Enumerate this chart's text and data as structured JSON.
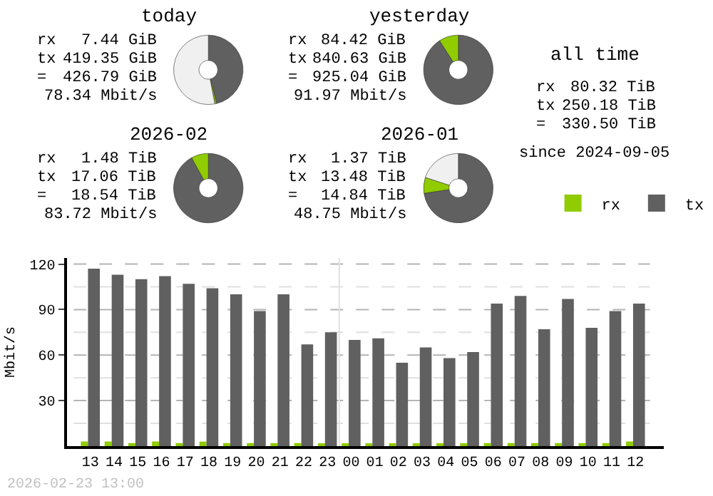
{
  "chart_data": [
    {
      "type": "donut",
      "title": "today",
      "annotations": [
        "rx",
        "7.44 GiB",
        "tx",
        "419.35 GiB",
        "=",
        "426.79 GiB",
        "78.34 Mbit/s"
      ],
      "categories": [
        null,
        null,
        null
      ],
      "values": [
        46.2,
        0.8,
        53
      ],
      "colors": [
        "#606060",
        "#90cc00",
        "#f0f0f0"
      ]
    },
    {
      "type": "donut",
      "title": "yesterday",
      "annotations": [
        "rx",
        "84.42 GiB",
        "tx",
        "840.63 GiB",
        "=",
        "925.04 GiB",
        "91.97 Mbit/s"
      ],
      "categories": [
        null,
        null
      ],
      "values": [
        90.9,
        9.1
      ],
      "colors": [
        "#606060",
        "#90cc00"
      ]
    },
    {
      "type": "other",
      "title": "all time",
      "annotations": [
        "rx",
        "80.32 TiB",
        "tx",
        "250.18 TiB",
        "=",
        "330.50 TiB",
        "since 2024-09-05"
      ]
    },
    {
      "type": "donut",
      "title": "2026-02",
      "annotations": [
        "rx",
        "1.48 TiB",
        "tx",
        "17.06 TiB",
        "=",
        "18.54 TiB",
        "83.72 Mbit/s"
      ],
      "categories": [
        null,
        null
      ],
      "values": [
        92,
        8
      ],
      "colors": [
        "#606060",
        "#90cc00"
      ]
    },
    {
      "type": "donut",
      "title": "2026-01",
      "annotations": [
        "rx",
        "1.37 TiB",
        "tx",
        "13.48 TiB",
        "=",
        "14.84 TiB",
        "48.75 Mbit/s"
      ],
      "categories": [
        null,
        null,
        null
      ],
      "values": [
        72.6,
        7.4,
        20
      ],
      "colors": [
        "#606060",
        "#90cc00",
        "#f0f0f0"
      ]
    },
    {
      "type": "bar",
      "ylabel": "Mbit/s",
      "annotations": [
        "2026-02-23 13:00"
      ],
      "categories": [
        "13",
        "14",
        "15",
        "16",
        "17",
        "18",
        "19",
        "20",
        "21",
        "22",
        "23",
        "00",
        "01",
        "02",
        "03",
        "04",
        "05",
        "06",
        "07",
        "08",
        "09",
        "10",
        "11",
        "12"
      ],
      "series": [
        {
          "name": "rx",
          "color": "#90cc00",
          "values": [
            3,
            3,
            2,
            3,
            2,
            3,
            2,
            2,
            2,
            2,
            1,
            1,
            1,
            1,
            1,
            1,
            1,
            2,
            2,
            2,
            2,
            2,
            2,
            3
          ]
        },
        {
          "name": "tx",
          "color": "#606060",
          "values": [
            117,
            113,
            110,
            112,
            107,
            104,
            100,
            89,
            100,
            67,
            75,
            70,
            71,
            55,
            65,
            58,
            62,
            94,
            99,
            77,
            97,
            78,
            89,
            94
          ]
        }
      ],
      "ylim": [
        0,
        124
      ],
      "yticks": [
        {
          "value": 15,
          "label": null
        },
        30,
        {
          "value": 45,
          "label": null
        },
        60,
        {
          "value": 75,
          "label": null
        },
        90,
        {
          "value": 105,
          "label": null
        },
        120
      ],
      "grid": "y",
      "legend": "top right",
      "ref_lines": [
        {
          "axis": "x",
          "value": "00",
          "color": "#e0e0e0"
        }
      ]
    }
  ]
}
